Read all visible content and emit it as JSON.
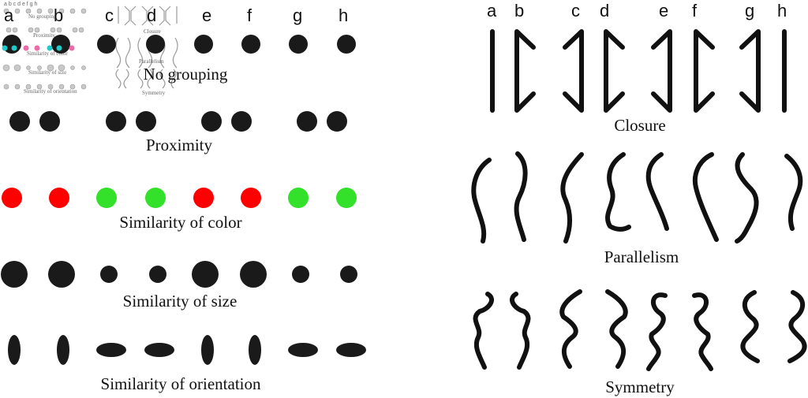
{
  "letters": [
    "a",
    "b",
    "c",
    "d",
    "e",
    "f",
    "g",
    "h"
  ],
  "colors": {
    "ink": "#1a1a1a",
    "red": "#ff0000",
    "green": "#33e02a",
    "thumb_cyan": "#21c9c9",
    "thumb_pink": "#ee6aa8"
  },
  "left_panel": {
    "no_grouping_caption": "No grouping",
    "proximity_caption": "Proximity",
    "color_caption": "Similarity of color",
    "size_caption": "Similarity of size",
    "orientation_caption": "Similarity of orientation",
    "color_sequence": [
      "red",
      "red",
      "green",
      "green",
      "red",
      "red",
      "green",
      "green"
    ],
    "size_sequence": [
      "large",
      "large",
      "small",
      "small",
      "large",
      "large",
      "small",
      "small"
    ],
    "orientation_sequence": [
      "vertical",
      "vertical",
      "horizontal",
      "horizontal",
      "vertical",
      "vertical",
      "horizontal",
      "horizontal"
    ]
  },
  "right_panel": {
    "closure_caption": "Closure",
    "parallelism_caption": "Parallelism",
    "symmetry_caption": "Symmetry"
  },
  "thumbnail": {
    "captions": [
      "No grouping",
      "Proximity",
      "Similarity of color",
      "Similarity of size",
      "Similarity of orientation"
    ],
    "right_captions": [
      "Closure",
      "Parallelism",
      "Symmetry"
    ]
  }
}
